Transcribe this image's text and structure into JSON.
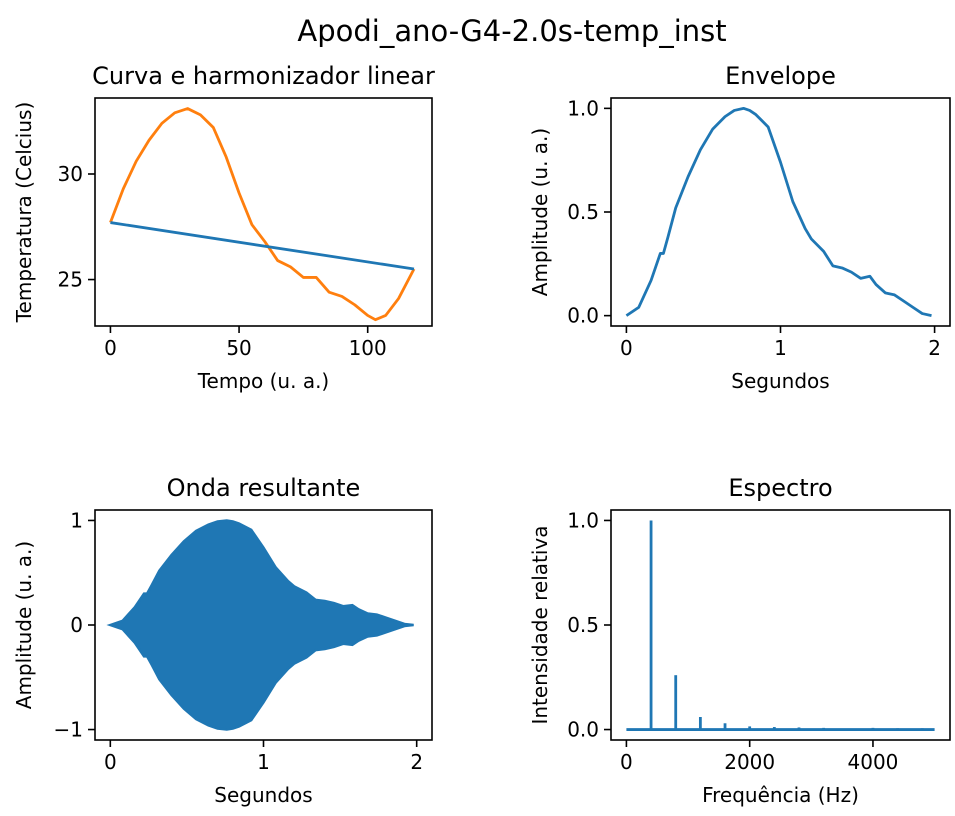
{
  "figure": {
    "suptitle": "Apodi_ano-G4-2.0s-temp_inst"
  },
  "colors": {
    "blue": "#1f77b4",
    "orange": "#ff7f0e",
    "axes": "#000000",
    "background": "#ffffff"
  },
  "chart_data": [
    {
      "id": "curva",
      "type": "line",
      "title": "Curva e harmonizador linear",
      "xlabel": "Tempo (u. a.)",
      "ylabel": "Temperatura (Celcius)",
      "xlim": [
        -6,
        125
      ],
      "ylim": [
        22.8,
        33.6
      ],
      "xticks": [
        0,
        50,
        100
      ],
      "xticklabels": [
        "0",
        "50",
        "100"
      ],
      "yticks": [
        25,
        30
      ],
      "yticklabels": [
        "25",
        "30"
      ],
      "series": [
        {
          "color": "orange",
          "x": [
            0,
            5,
            10,
            15,
            20,
            25,
            30,
            35,
            40,
            45,
            50,
            55,
            60,
            65,
            70,
            75,
            80,
            85,
            90,
            95,
            100,
            103,
            107,
            112,
            118
          ],
          "y": [
            27.7,
            29.3,
            30.6,
            31.6,
            32.4,
            32.9,
            33.1,
            32.8,
            32.2,
            30.8,
            29.1,
            27.6,
            26.8,
            25.9,
            25.6,
            25.1,
            25.1,
            24.4,
            24.2,
            23.8,
            23.3,
            23.1,
            23.3,
            24.1,
            25.5
          ]
        },
        {
          "color": "blue",
          "x": [
            0,
            118
          ],
          "y": [
            27.7,
            25.5
          ]
        }
      ]
    },
    {
      "id": "envelope",
      "type": "line",
      "title": "Envelope",
      "xlabel": "Segundos",
      "ylabel": "Amplitude (u. a.)",
      "xlim": [
        -0.1,
        2.1
      ],
      "ylim": [
        -0.05,
        1.05
      ],
      "xticks": [
        0,
        1,
        2
      ],
      "xticklabels": [
        "0",
        "1",
        "2"
      ],
      "yticks": [
        0,
        0.5,
        1.0
      ],
      "yticklabels": [
        "0.0",
        "0.5",
        "1.0"
      ],
      "series": [
        {
          "color": "blue",
          "x": [
            0,
            0.08,
            0.16,
            0.22,
            0.24,
            0.27,
            0.32,
            0.4,
            0.48,
            0.56,
            0.64,
            0.7,
            0.76,
            0.8,
            0.84,
            0.92,
            1.0,
            1.08,
            1.16,
            1.2,
            1.28,
            1.34,
            1.4,
            1.46,
            1.52,
            1.58,
            1.62,
            1.68,
            1.74,
            1.8,
            1.86,
            1.92,
            1.98
          ],
          "y": [
            0.0,
            0.04,
            0.17,
            0.3,
            0.3,
            0.38,
            0.52,
            0.67,
            0.8,
            0.9,
            0.96,
            0.99,
            1.0,
            0.99,
            0.97,
            0.91,
            0.74,
            0.55,
            0.42,
            0.37,
            0.31,
            0.24,
            0.23,
            0.21,
            0.18,
            0.19,
            0.15,
            0.11,
            0.1,
            0.07,
            0.04,
            0.01,
            0.0
          ]
        }
      ]
    },
    {
      "id": "onda",
      "type": "area",
      "title": "Onda resultante",
      "xlabel": "Segundos",
      "ylabel": "Amplitude (u. a.)",
      "xlim": [
        -0.1,
        2.1
      ],
      "ylim": [
        -1.1,
        1.1
      ],
      "xticks": [
        0,
        1,
        2
      ],
      "xticklabels": [
        "0",
        "1",
        "2"
      ],
      "yticks": [
        -1,
        0,
        1
      ],
      "yticklabels": [
        "−1",
        "0",
        "1"
      ],
      "series": [
        {
          "color": "blue",
          "x": [
            0,
            0.08,
            0.16,
            0.22,
            0.24,
            0.27,
            0.32,
            0.4,
            0.48,
            0.56,
            0.64,
            0.7,
            0.76,
            0.8,
            0.84,
            0.92,
            1.0,
            1.08,
            1.16,
            1.2,
            1.28,
            1.34,
            1.4,
            1.46,
            1.52,
            1.58,
            1.62,
            1.68,
            1.74,
            1.8,
            1.86,
            1.92,
            1.98
          ],
          "y": [
            0.0,
            0.04,
            0.17,
            0.3,
            0.3,
            0.38,
            0.52,
            0.67,
            0.8,
            0.9,
            0.96,
            0.99,
            1.0,
            0.99,
            0.97,
            0.91,
            0.74,
            0.55,
            0.42,
            0.37,
            0.31,
            0.24,
            0.23,
            0.21,
            0.18,
            0.19,
            0.15,
            0.11,
            0.1,
            0.07,
            0.04,
            0.01,
            0.0
          ]
        }
      ]
    },
    {
      "id": "espectro",
      "type": "line",
      "title": "Espectro",
      "xlabel": "Frequência (Hz)",
      "ylabel": "Intensidade relativa",
      "xlim": [
        -250,
        5250
      ],
      "ylim": [
        -0.05,
        1.05
      ],
      "xticks": [
        0,
        2000,
        4000
      ],
      "xticklabels": [
        "0",
        "2000",
        "4000"
      ],
      "yticks": [
        0,
        0.5,
        1.0
      ],
      "yticklabels": [
        "0.0",
        "0.5",
        "1.0"
      ],
      "series": [
        {
          "color": "blue",
          "baseline": 0.0,
          "xmax": 5000,
          "peaks_x": [
            400,
            800,
            1200,
            1600,
            2000,
            2400,
            2800,
            3200,
            4000,
            4400,
            4800
          ],
          "peaks_y": [
            1.0,
            0.26,
            0.06,
            0.03,
            0.015,
            0.012,
            0.01,
            0.008,
            0.008,
            0.006,
            0.006
          ]
        }
      ]
    }
  ]
}
